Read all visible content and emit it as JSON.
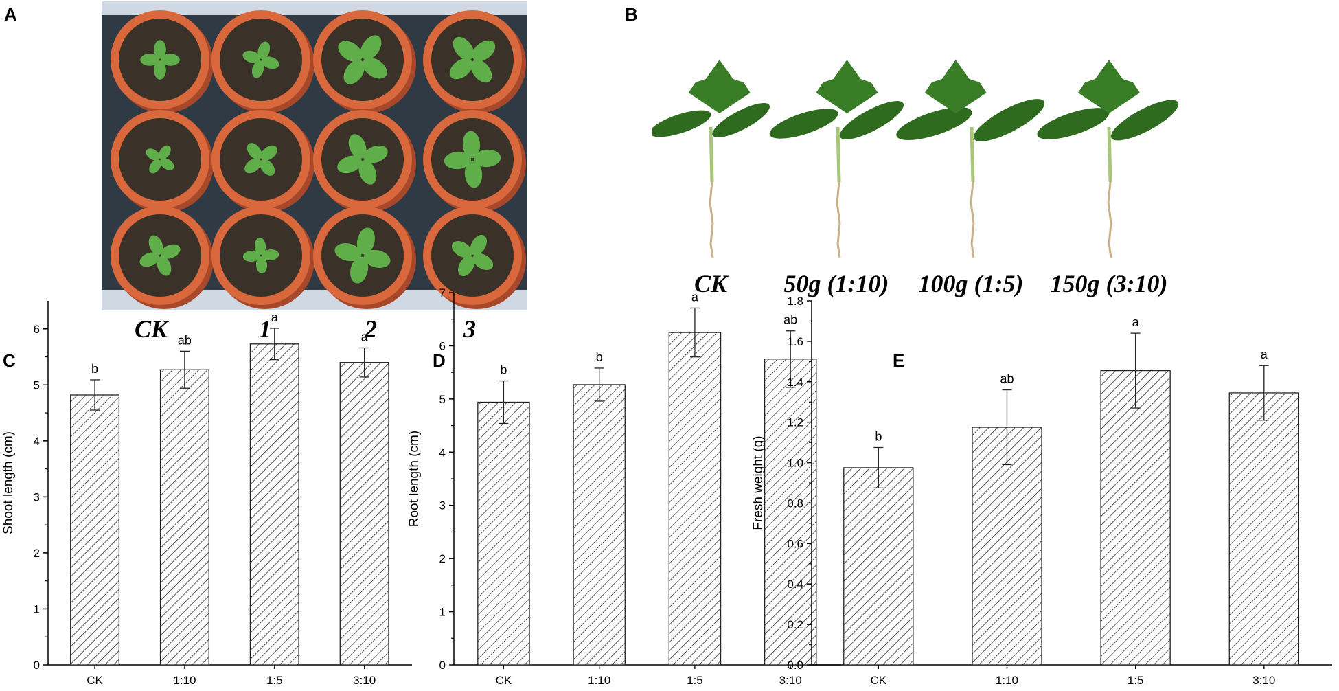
{
  "panel_a": {
    "letter": "A",
    "labels": [
      "CK",
      "1",
      "2",
      "3"
    ]
  },
  "panel_b": {
    "letter": "B",
    "labels": [
      "CK",
      "50g (1:10)",
      "100g (1:5)",
      "150g (3:10)"
    ]
  },
  "colors": {
    "pot": "#d9683c",
    "pot_rim": "#c9552c",
    "soil": "#3a3128",
    "leaf": "#5fae4a",
    "tray": "#2f3a45",
    "seedling_leaf": "#2f6b1e",
    "stem": "#a9c77a",
    "root": "#c9b28a",
    "bar_hatch": "#333333",
    "axis": "#000000"
  },
  "chart_data": [
    {
      "type": "bar",
      "panel": "C",
      "categories": [
        "CK",
        "1:10",
        "1:5",
        "3:10"
      ],
      "values": [
        4.82,
        5.27,
        5.73,
        5.4
      ],
      "errors": [
        0.27,
        0.33,
        0.28,
        0.26
      ],
      "significance": [
        "b",
        "ab",
        "a",
        "a"
      ],
      "ylabel": "Shoot length (cm)",
      "xlabel": "",
      "ylim": [
        0,
        6.5
      ],
      "yticks": [
        0,
        1,
        2,
        3,
        4,
        5,
        6
      ],
      "ytick_labels": [
        "0",
        "1",
        "2",
        "3",
        "4",
        "5",
        "6"
      ],
      "grid": false,
      "pattern": "diagonal-hatch"
    },
    {
      "type": "bar",
      "panel": "D",
      "categories": [
        "CK",
        "1:10",
        "1:5",
        "3:10"
      ],
      "values": [
        4.94,
        5.27,
        6.25,
        5.75
      ],
      "errors": [
        0.4,
        0.31,
        0.46,
        0.53
      ],
      "significance": [
        "b",
        "b",
        "a",
        "ab"
      ],
      "ylabel": "Root length (cm)",
      "xlabel": "",
      "ylim": [
        0,
        7
      ],
      "yticks": [
        0,
        1,
        2,
        3,
        4,
        5,
        6,
        7
      ],
      "ytick_labels": [
        "0",
        "1",
        "2",
        "3",
        "4",
        "5",
        "6",
        "7"
      ],
      "grid": false,
      "pattern": "diagonal-hatch"
    },
    {
      "type": "bar",
      "panel": "E",
      "categories": [
        "CK",
        "1:10",
        "1:5",
        "3:10"
      ],
      "values": [
        0.975,
        1.175,
        1.455,
        1.345
      ],
      "errors": [
        0.1,
        0.185,
        0.185,
        0.135
      ],
      "significance": [
        "b",
        "ab",
        "a",
        "a"
      ],
      "ylabel": "Fresh weight (g)",
      "xlabel": "",
      "ylim": [
        0,
        1.8
      ],
      "yticks": [
        0,
        0.2,
        0.4,
        0.6,
        0.8,
        1.0,
        1.2,
        1.4,
        1.6,
        1.8
      ],
      "ytick_labels": [
        "0.0",
        "0.2",
        "0.4",
        "0.6",
        "0.8",
        "1.0",
        "1.2",
        "1.4",
        "1.6",
        "1.8"
      ],
      "grid": false,
      "pattern": "diagonal-hatch"
    }
  ]
}
